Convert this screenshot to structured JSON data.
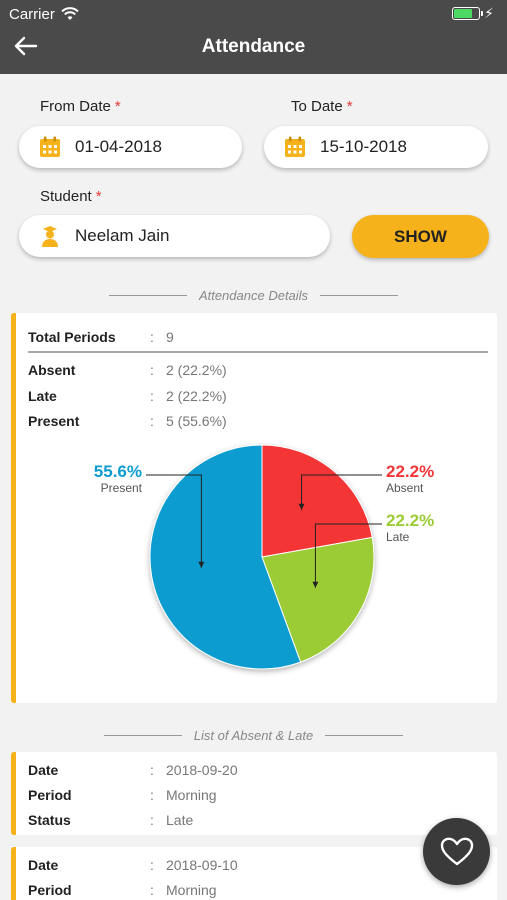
{
  "status_bar": {
    "carrier": "Carrier"
  },
  "header": {
    "title": "Attendance"
  },
  "form": {
    "from_label": "From Date",
    "to_label": "To Date",
    "student_label": "Student",
    "required_mark": "*",
    "from_value": "01-04-2018",
    "to_value": "15-10-2018",
    "student_value": "Neelam Jain",
    "show_label": "SHOW"
  },
  "details": {
    "heading": "Attendance Details",
    "separator": ":",
    "rows": [
      {
        "key": "Total Periods",
        "value": "9"
      },
      {
        "key": "Absent",
        "value": "2 (22.2%)"
      },
      {
        "key": "Late",
        "value": "2 (22.2%)"
      },
      {
        "key": "Present",
        "value": "5 (55.6%)"
      }
    ]
  },
  "chart_data": {
    "type": "pie",
    "slices": [
      {
        "label": "Absent",
        "value": 22.2,
        "display": "22.2%",
        "color": "#f43636"
      },
      {
        "label": "Late",
        "value": 22.2,
        "display": "22.2%",
        "color": "#9ccc34"
      },
      {
        "label": "Present",
        "value": 55.6,
        "display": "55.6%",
        "color": "#0e9cd0"
      }
    ]
  },
  "list": {
    "heading": "List of Absent & Late",
    "items": [
      {
        "date_label": "Date",
        "date": "2018-09-20",
        "period_label": "Period",
        "period": "Morning",
        "status_label": "Status",
        "status": "Late"
      },
      {
        "date_label": "Date",
        "date": "2018-09-10",
        "period_label": "Period",
        "period": "Morning"
      }
    ]
  },
  "colors": {
    "accent": "#f5b21a",
    "header": "#4a4a4a",
    "required": "#e53935"
  }
}
